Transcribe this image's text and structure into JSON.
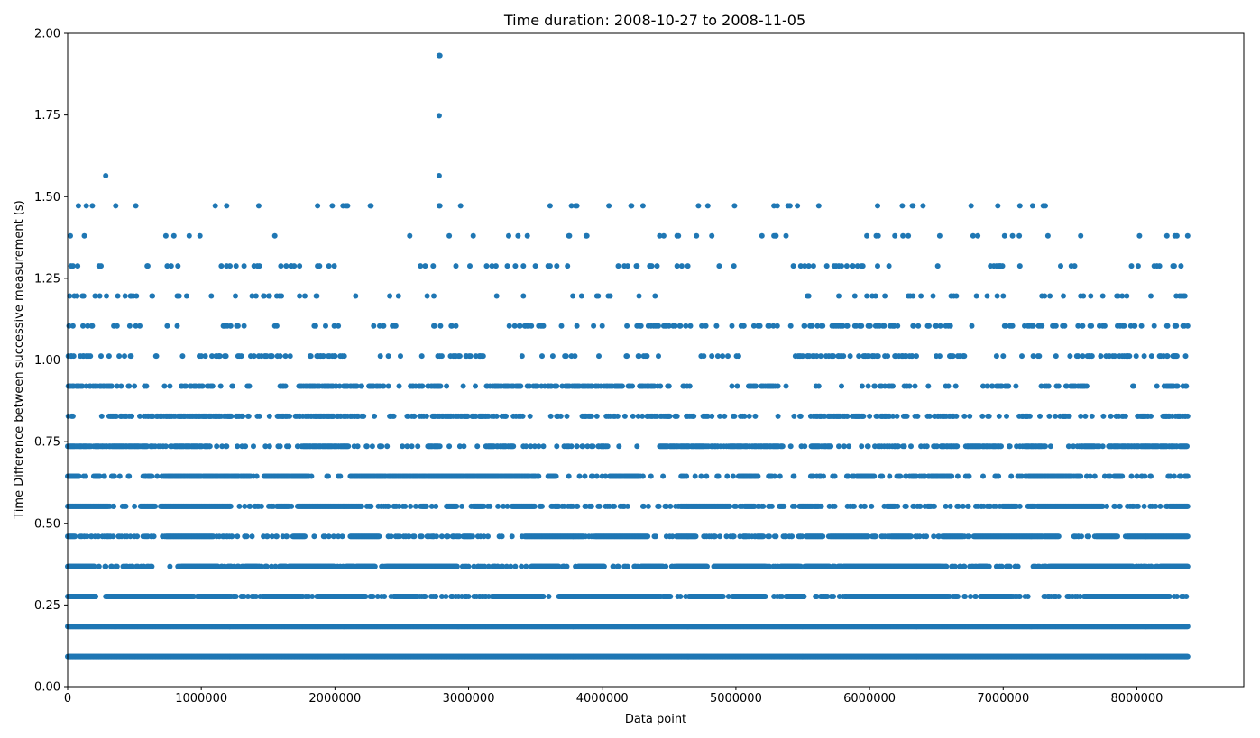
{
  "chart_data": {
    "type": "scatter",
    "title": "Time duration: 2008-10-27 to 2008-11-05",
    "xlabel": "Data point",
    "ylabel": "Time Difference between successive measurement (s)",
    "xlim": [
      0,
      8800000
    ],
    "ylim": [
      0,
      2.0
    ],
    "x_ticks": [
      0,
      1000000,
      2000000,
      3000000,
      4000000,
      5000000,
      6000000,
      7000000,
      8000000
    ],
    "x_tick_labels": [
      "0",
      "1000000",
      "2000000",
      "3000000",
      "4000000",
      "5000000",
      "6000000",
      "7000000",
      "8000000"
    ],
    "y_ticks": [
      0,
      0.25,
      0.5,
      0.75,
      1.0,
      1.25,
      1.5,
      1.75,
      2.0
    ],
    "y_tick_labels": [
      "0.00",
      "0.25",
      "0.50",
      "0.75",
      "1.00",
      "1.25",
      "1.50",
      "1.75",
      "2.00"
    ],
    "grid": false,
    "legend": "none",
    "series_color": "#1f77b4",
    "x_data_max": 8380000,
    "levels": [
      {
        "y": 0.092,
        "density": 1.0
      },
      {
        "y": 0.184,
        "density": 1.0
      },
      {
        "y": 0.276,
        "density": 0.97
      },
      {
        "y": 0.368,
        "density": 0.9
      },
      {
        "y": 0.46,
        "density": 0.82
      },
      {
        "y": 0.552,
        "density": 0.68
      },
      {
        "y": 0.644,
        "density": 0.55
      },
      {
        "y": 0.736,
        "density": 0.5
      },
      {
        "y": 0.828,
        "density": 0.35
      },
      {
        "y": 0.92,
        "density": 0.24
      },
      {
        "y": 1.012,
        "density": 0.15
      },
      {
        "y": 1.104,
        "density": 0.11
      },
      {
        "y": 1.196,
        "density": 0.06
      },
      {
        "y": 1.288,
        "density": 0.05
      },
      {
        "y": 1.38,
        "density": 0.025
      },
      {
        "y": 1.472,
        "density": 0.018
      }
    ],
    "outliers": [
      {
        "x": 2780000,
        "y": 1.932
      },
      {
        "x": 2785000,
        "y": 1.932
      },
      {
        "x": 2780000,
        "y": 1.748
      },
      {
        "x": 2780000,
        "y": 1.564
      },
      {
        "x": 2780000,
        "y": 1.472
      },
      {
        "x": 2785000,
        "y": 1.472
      },
      {
        "x": 285000,
        "y": 1.564
      },
      {
        "x": 80000,
        "y": 1.472
      },
      {
        "x": 140000,
        "y": 1.472
      },
      {
        "x": 360000,
        "y": 1.472
      },
      {
        "x": 510000,
        "y": 1.472
      },
      {
        "x": 1190000,
        "y": 1.472
      },
      {
        "x": 1430000,
        "y": 1.472
      },
      {
        "x": 1870000,
        "y": 1.472
      },
      {
        "x": 2060000,
        "y": 1.472
      },
      {
        "x": 2270000,
        "y": 1.472
      },
      {
        "x": 3610000,
        "y": 1.472
      },
      {
        "x": 4050000,
        "y": 1.472
      },
      {
        "x": 4720000,
        "y": 1.472
      },
      {
        "x": 4990000,
        "y": 1.472
      },
      {
        "x": 6320000,
        "y": 1.472
      },
      {
        "x": 6400000,
        "y": 1.472
      },
      {
        "x": 6760000,
        "y": 1.472
      },
      {
        "x": 6960000,
        "y": 1.472
      },
      {
        "x": 7220000,
        "y": 1.472
      }
    ]
  }
}
